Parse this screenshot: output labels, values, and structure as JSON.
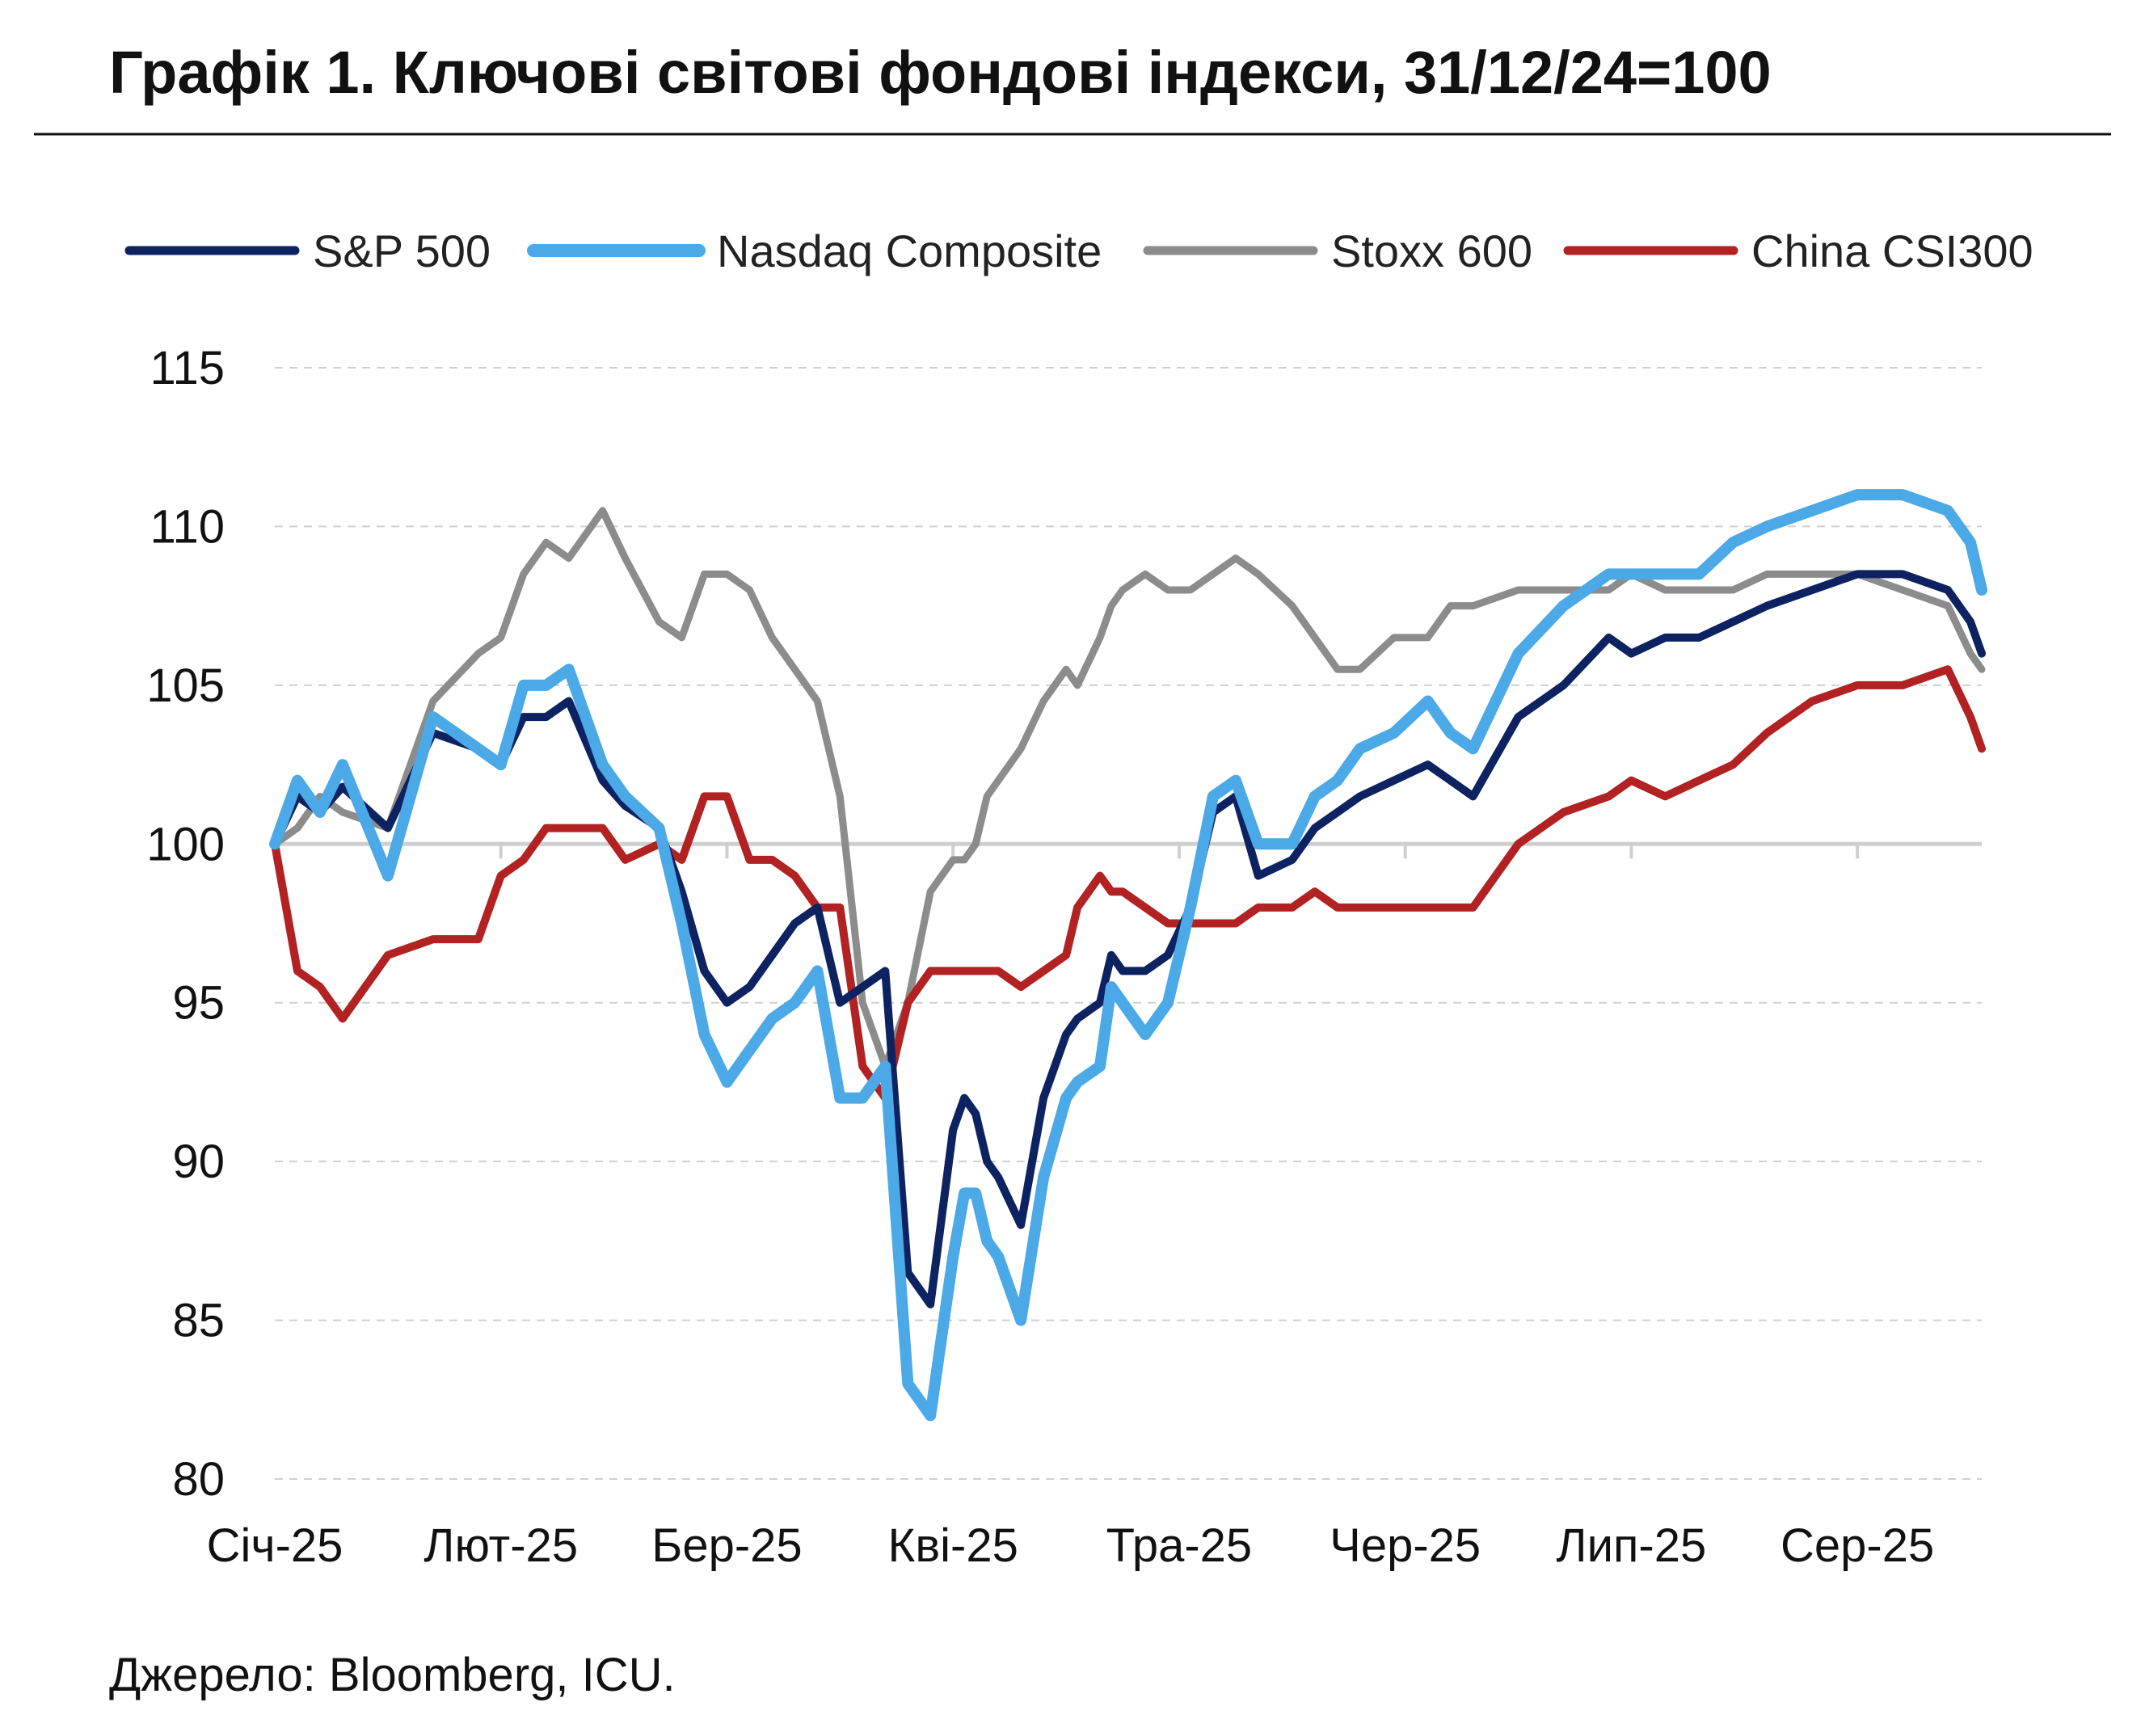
{
  "title": "Графік 1. Ключові світові фондові індекси, 31/12/24=100",
  "source": "Джерело: Bloomberg, ICU.",
  "chart_data": {
    "type": "line",
    "title": "Графік 1. Ключові світові фондові індекси, 31/12/24=100",
    "xlabel": "",
    "ylabel": "",
    "ylim": [
      80,
      115
    ],
    "yticks": [
      "80",
      "85",
      "90",
      "95",
      "100",
      "105",
      "110",
      "115"
    ],
    "grid": true,
    "legend_position": "top",
    "x_labels": [
      "Січ-25",
      "Лют-25",
      "Бер-25",
      "Кві-25",
      "Тра-25",
      "Чер-25",
      "Лип-25",
      "Сер-25"
    ],
    "x_label_months": [
      0,
      1,
      2,
      3,
      4,
      5,
      6,
      7
    ],
    "x_units": "months since 31.12.2024",
    "series": [
      {
        "name": "S&P 500",
        "color": "#0d2261",
        "x": [
          0,
          0.1,
          0.2,
          0.3,
          0.5,
          0.7,
          0.9,
          1.0,
          1.1,
          1.2,
          1.3,
          1.45,
          1.55,
          1.7,
          1.8,
          1.9,
          2.0,
          2.1,
          2.2,
          2.3,
          2.4,
          2.5,
          2.6,
          2.7,
          2.8,
          2.9,
          3.0,
          3.05,
          3.1,
          3.15,
          3.2,
          3.3,
          3.4,
          3.5,
          3.55,
          3.65,
          3.7,
          3.75,
          3.85,
          3.95,
          4.05,
          4.15,
          4.25,
          4.35,
          4.5,
          4.6,
          4.7,
          4.8,
          4.95,
          5.1,
          5.2,
          5.3,
          5.5,
          5.7,
          5.9,
          6.0,
          6.15,
          6.3,
          6.45,
          6.6,
          6.8,
          7.0,
          7.2,
          7.4,
          7.5,
          7.55
        ],
        "values": [
          100,
          101.5,
          101,
          101.8,
          100.5,
          103.5,
          103,
          102.5,
          104,
          104,
          104.5,
          102,
          101.2,
          100.5,
          98.5,
          96,
          95,
          95.5,
          96.5,
          97.5,
          98,
          95,
          95.5,
          96,
          86.5,
          85.5,
          91,
          92,
          91.5,
          90,
          89.5,
          88,
          92,
          94,
          94.5,
          95,
          96.5,
          96,
          96,
          96.5,
          98,
          101,
          101.5,
          99,
          99.5,
          100.5,
          101,
          101.5,
          102,
          102.5,
          102,
          101.5,
          104,
          105,
          106.5,
          106,
          106.5,
          106.5,
          107,
          107.5,
          108,
          108.5,
          108.5,
          108,
          107,
          106
        ]
      },
      {
        "name": "Nasdaq Composite",
        "color": "#4aa9e6",
        "x": [
          0,
          0.1,
          0.2,
          0.3,
          0.5,
          0.7,
          0.9,
          1.0,
          1.1,
          1.2,
          1.3,
          1.45,
          1.55,
          1.7,
          1.8,
          1.9,
          2.0,
          2.1,
          2.2,
          2.3,
          2.4,
          2.5,
          2.6,
          2.7,
          2.8,
          2.9,
          3.0,
          3.05,
          3.1,
          3.15,
          3.2,
          3.3,
          3.4,
          3.5,
          3.55,
          3.65,
          3.7,
          3.75,
          3.85,
          3.95,
          4.05,
          4.15,
          4.25,
          4.35,
          4.5,
          4.6,
          4.7,
          4.8,
          4.95,
          5.1,
          5.2,
          5.3,
          5.5,
          5.7,
          5.9,
          6.0,
          6.15,
          6.3,
          6.45,
          6.6,
          6.8,
          7.0,
          7.2,
          7.4,
          7.5,
          7.55
        ],
        "values": [
          100,
          102,
          101,
          102.5,
          99,
          104,
          103,
          102.5,
          105,
          105,
          105.5,
          102.5,
          101.5,
          100.5,
          97.5,
          94,
          92.5,
          93.5,
          94.5,
          95,
          96,
          92,
          92,
          93,
          83,
          82,
          87,
          89,
          89,
          87.5,
          87,
          85,
          89.5,
          92,
          92.5,
          93,
          95.5,
          95,
          94,
          95,
          98,
          101.5,
          102,
          100,
          100,
          101.5,
          102,
          103,
          103.5,
          104.5,
          103.5,
          103,
          106,
          107.5,
          108.5,
          108.5,
          108.5,
          108.5,
          109.5,
          110,
          110.5,
          111,
          111,
          110.5,
          109.5,
          108
        ]
      },
      {
        "name": "Stoxx 600",
        "color": "#8c8c8c",
        "x": [
          0,
          0.1,
          0.2,
          0.3,
          0.5,
          0.7,
          0.9,
          1.0,
          1.1,
          1.2,
          1.3,
          1.45,
          1.55,
          1.7,
          1.8,
          1.9,
          2.0,
          2.1,
          2.2,
          2.3,
          2.4,
          2.5,
          2.6,
          2.7,
          2.8,
          2.9,
          3.0,
          3.05,
          3.1,
          3.15,
          3.2,
          3.3,
          3.4,
          3.5,
          3.55,
          3.65,
          3.7,
          3.75,
          3.85,
          3.95,
          4.05,
          4.15,
          4.25,
          4.35,
          4.5,
          4.6,
          4.7,
          4.8,
          4.95,
          5.1,
          5.2,
          5.3,
          5.5,
          5.7,
          5.9,
          6.0,
          6.15,
          6.3,
          6.45,
          6.6,
          6.8,
          7.0,
          7.2,
          7.4,
          7.5,
          7.55
        ],
        "values": [
          100,
          100.5,
          101.5,
          101,
          100.5,
          104.5,
          106,
          106.5,
          108.5,
          109.5,
          109,
          110.5,
          109,
          107,
          106.5,
          108.5,
          108.5,
          108,
          106.5,
          105.5,
          104.5,
          101.5,
          95,
          93,
          95,
          98.5,
          99.5,
          99.5,
          100,
          101.5,
          102,
          103,
          104.5,
          105.5,
          105,
          106.5,
          107.5,
          108,
          108.5,
          108,
          108,
          108.5,
          109,
          108.5,
          107.5,
          106.5,
          105.5,
          105.5,
          106.5,
          106.5,
          107.5,
          107.5,
          108,
          108,
          108,
          108.5,
          108,
          108,
          108,
          108.5,
          108.5,
          108.5,
          108,
          107.5,
          106,
          105.5
        ]
      },
      {
        "name": "China CSI300",
        "color": "#b22222",
        "x": [
          0,
          0.1,
          0.2,
          0.3,
          0.5,
          0.7,
          0.9,
          1.0,
          1.1,
          1.2,
          1.3,
          1.45,
          1.55,
          1.7,
          1.8,
          1.9,
          2.0,
          2.1,
          2.2,
          2.3,
          2.4,
          2.5,
          2.6,
          2.7,
          2.8,
          2.9,
          3.0,
          3.05,
          3.1,
          3.15,
          3.2,
          3.3,
          3.4,
          3.5,
          3.55,
          3.65,
          3.7,
          3.75,
          3.85,
          3.95,
          4.05,
          4.15,
          4.25,
          4.35,
          4.5,
          4.6,
          4.7,
          4.8,
          4.95,
          5.1,
          5.2,
          5.3,
          5.5,
          5.7,
          5.9,
          6.0,
          6.15,
          6.3,
          6.45,
          6.6,
          6.8,
          7.0,
          7.2,
          7.4,
          7.5,
          7.55
        ],
        "values": [
          100,
          96,
          95.5,
          94.5,
          96.5,
          97,
          97,
          99,
          99.5,
          100.5,
          100.5,
          100.5,
          99.5,
          100,
          99.5,
          101.5,
          101.5,
          99.5,
          99.5,
          99,
          98,
          98,
          93,
          92,
          95,
          96,
          96,
          96,
          96,
          96,
          96,
          95.5,
          96,
          96.5,
          98,
          99,
          98.5,
          98.5,
          98,
          97.5,
          97.5,
          97.5,
          97.5,
          98,
          98,
          98.5,
          98,
          98,
          98,
          98,
          98,
          98,
          100,
          101,
          101.5,
          102,
          101.5,
          102,
          102.5,
          103.5,
          104.5,
          105,
          105,
          105.5,
          104,
          103
        ]
      }
    ]
  }
}
